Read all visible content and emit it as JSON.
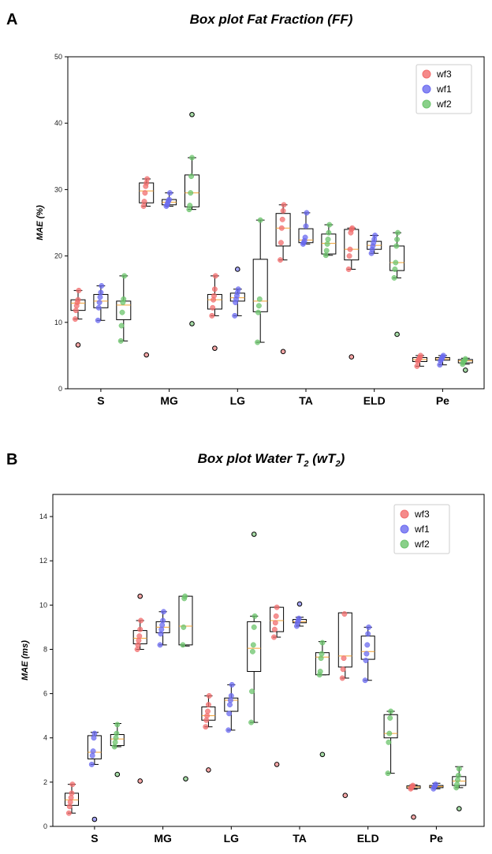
{
  "chart_data": [
    {
      "type": "box",
      "panel": "A",
      "title": "Box plot Fat Fraction (FF)",
      "ylabel": "MAE (%)",
      "xlabel": "",
      "ylim": [
        0,
        50
      ],
      "yticks": [
        0,
        10,
        20,
        30,
        40,
        50
      ],
      "grid": false,
      "legend_position": "top-right",
      "categories": [
        "S",
        "MG",
        "LG",
        "TA",
        "ELD",
        "Pe"
      ],
      "series": [
        {
          "name": "wf3",
          "color": "#f26d6d",
          "boxes": [
            {
              "q1": 11.8,
              "median": 12.9,
              "q3": 13.4,
              "whislo": 10.5,
              "whishi": 14.8,
              "points": [
                10.5,
                11.8,
                12.5,
                13.0,
                13.4,
                14.8
              ],
              "outliers": [
                6.6
              ]
            },
            {
              "q1": 28.0,
              "median": 29.8,
              "q3": 31.0,
              "whislo": 27.5,
              "whishi": 31.6,
              "points": [
                27.5,
                28.2,
                29.5,
                30.5,
                31.0,
                31.6
              ],
              "outliers": [
                5.1
              ]
            },
            {
              "q1": 12.0,
              "median": 13.4,
              "q3": 14.2,
              "whislo": 11.0,
              "whishi": 17.0,
              "points": [
                11.0,
                12.2,
                13.4,
                14.0,
                15.0,
                17.0
              ],
              "outliers": [
                6.1
              ]
            },
            {
              "q1": 21.5,
              "median": 24.2,
              "q3": 26.4,
              "whislo": 19.4,
              "whishi": 27.7,
              "points": [
                19.4,
                22.0,
                24.2,
                25.5,
                26.8,
                27.7
              ],
              "outliers": [
                5.6
              ]
            },
            {
              "q1": 19.4,
              "median": 21.0,
              "q3": 24.0,
              "whislo": 18.0,
              "whishi": 24.2,
              "points": [
                18.0,
                20.0,
                21.0,
                23.5,
                24.0,
                24.2
              ],
              "outliers": [
                4.8
              ]
            },
            {
              "q1": 4.1,
              "median": 4.4,
              "q3": 4.7,
              "whislo": 3.4,
              "whishi": 5.0,
              "points": [
                3.4,
                4.1,
                4.3,
                4.5,
                4.7,
                5.0
              ],
              "outliers": []
            }
          ]
        },
        {
          "name": "wf1",
          "color": "#6b6bf0",
          "boxes": [
            {
              "q1": 12.2,
              "median": 13.2,
              "q3": 14.2,
              "whislo": 10.3,
              "whishi": 15.5,
              "points": [
                10.3,
                12.2,
                13.0,
                13.8,
                14.5,
                15.5
              ],
              "outliers": []
            },
            {
              "q1": 27.7,
              "median": 28.1,
              "q3": 28.5,
              "whislo": 27.5,
              "whishi": 29.5,
              "points": [
                27.5,
                27.7,
                28.0,
                28.3,
                28.5,
                29.5
              ],
              "outliers": []
            },
            {
              "q1": 13.2,
              "median": 13.7,
              "q3": 14.4,
              "whislo": 11.0,
              "whishi": 15.0,
              "points": [
                11.0,
                13.0,
                13.5,
                14.0,
                14.5,
                15.0
              ],
              "outliers": [
                18.0
              ]
            },
            {
              "q1": 22.0,
              "median": 22.4,
              "q3": 24.1,
              "whislo": 21.8,
              "whishi": 26.5,
              "points": [
                21.8,
                22.0,
                22.3,
                22.8,
                24.5,
                26.5
              ],
              "outliers": []
            },
            {
              "q1": 21.0,
              "median": 21.6,
              "q3": 22.2,
              "whislo": 20.4,
              "whishi": 23.1,
              "points": [
                20.4,
                21.0,
                21.5,
                22.0,
                22.5,
                23.1
              ],
              "outliers": []
            },
            {
              "q1": 4.3,
              "median": 4.5,
              "q3": 4.7,
              "whislo": 3.6,
              "whishi": 5.0,
              "points": [
                3.6,
                4.2,
                4.4,
                4.6,
                4.8,
                5.0
              ],
              "outliers": []
            }
          ]
        },
        {
          "name": "wf2",
          "color": "#6cc46c",
          "boxes": [
            {
              "q1": 10.4,
              "median": 12.6,
              "q3": 13.2,
              "whislo": 7.2,
              "whishi": 17.0,
              "points": [
                7.2,
                9.5,
                11.5,
                13.0,
                13.5,
                17.0
              ],
              "outliers": []
            },
            {
              "q1": 27.4,
              "median": 29.5,
              "q3": 32.2,
              "whislo": 27.0,
              "whishi": 34.8,
              "points": [
                27.0,
                27.6,
                29.5,
                32.0,
                34.8
              ],
              "outliers": [
                9.8,
                41.3
              ]
            },
            {
              "q1": 11.6,
              "median": 13.2,
              "q3": 19.5,
              "whislo": 7.0,
              "whishi": 25.4,
              "points": [
                7.0,
                11.5,
                12.5,
                13.5,
                25.4
              ],
              "outliers": []
            },
            {
              "q1": 20.3,
              "median": 21.9,
              "q3": 23.3,
              "whislo": 20.1,
              "whishi": 24.7,
              "points": [
                20.1,
                20.8,
                21.8,
                22.5,
                23.5,
                24.7
              ],
              "outliers": []
            },
            {
              "q1": 17.8,
              "median": 19.0,
              "q3": 21.5,
              "whislo": 16.7,
              "whishi": 23.5,
              "points": [
                16.7,
                18.0,
                19.0,
                21.5,
                22.5,
                23.5
              ],
              "outliers": [
                8.2
              ]
            },
            {
              "q1": 3.9,
              "median": 4.2,
              "q3": 4.4,
              "whislo": 3.7,
              "whishi": 4.6,
              "points": [
                3.7,
                4.0,
                4.2,
                4.3,
                4.5
              ],
              "outliers": [
                2.8
              ]
            }
          ]
        }
      ]
    },
    {
      "type": "box",
      "panel": "B",
      "title": "Box plot Water T2 (wT2)",
      "title_main": "Box plot Water T",
      "title_sub": "2",
      "title_paren": "wT",
      "ylabel": "MAE (ms)",
      "xlabel": "",
      "ylim": [
        0,
        15
      ],
      "yticks": [
        0,
        2,
        4,
        6,
        8,
        10,
        12,
        14
      ],
      "grid": false,
      "legend_position": "top-right",
      "categories": [
        "S",
        "MG",
        "LG",
        "TA",
        "ELD",
        "Pe"
      ],
      "series": [
        {
          "name": "wf3",
          "color": "#f26d6d",
          "boxes": [
            {
              "q1": 0.95,
              "median": 1.2,
              "q3": 1.5,
              "whislo": 0.6,
              "whishi": 1.9,
              "points": [
                0.6,
                0.9,
                1.1,
                1.3,
                1.5,
                1.9
              ],
              "outliers": []
            },
            {
              "q1": 8.25,
              "median": 8.5,
              "q3": 8.85,
              "whislo": 8.0,
              "whishi": 9.3,
              "points": [
                8.0,
                8.2,
                8.4,
                8.6,
                8.9,
                9.3
              ],
              "outliers": [
                2.05,
                10.4
              ]
            },
            {
              "q1": 4.8,
              "median": 5.0,
              "q3": 5.4,
              "whislo": 4.5,
              "whishi": 5.9,
              "points": [
                4.5,
                4.8,
                5.0,
                5.2,
                5.5,
                5.9
              ],
              "outliers": [
                2.55
              ]
            },
            {
              "q1": 8.8,
              "median": 9.3,
              "q3": 9.9,
              "whislo": 8.55,
              "whishi": 9.9,
              "points": [
                8.55,
                8.9,
                9.2,
                9.5,
                9.9
              ],
              "outliers": [
                2.8
              ]
            },
            {
              "q1": 7.2,
              "median": 7.7,
              "q3": 9.65,
              "whislo": 6.7,
              "whishi": 9.65,
              "points": [
                6.7,
                7.1,
                7.6,
                9.6
              ],
              "outliers": [
                1.4
              ]
            },
            {
              "q1": 1.72,
              "median": 1.78,
              "q3": 1.83,
              "whislo": 1.68,
              "whishi": 1.88,
              "points": [
                1.7,
                1.75,
                1.8,
                1.85
              ],
              "outliers": [
                0.42
              ]
            }
          ]
        },
        {
          "name": "wf1",
          "color": "#6b6bf0",
          "boxes": [
            {
              "q1": 3.05,
              "median": 3.35,
              "q3": 4.1,
              "whislo": 2.8,
              "whishi": 4.25,
              "points": [
                2.8,
                3.2,
                3.4,
                4.0,
                4.2
              ],
              "outliers": [
                0.32
              ]
            },
            {
              "q1": 8.75,
              "median": 9.0,
              "q3": 9.25,
              "whislo": 8.2,
              "whishi": 9.7,
              "points": [
                8.2,
                8.7,
                8.9,
                9.1,
                9.3,
                9.7
              ],
              "outliers": []
            },
            {
              "q1": 5.2,
              "median": 5.7,
              "q3": 5.8,
              "whislo": 4.35,
              "whishi": 6.4,
              "points": [
                4.35,
                5.1,
                5.5,
                5.7,
                5.9,
                6.4
              ],
              "outliers": []
            },
            {
              "q1": 9.2,
              "median": 9.25,
              "q3": 9.35,
              "whislo": 9.05,
              "whishi": 9.45,
              "points": [
                9.05,
                9.2,
                9.3,
                9.4
              ],
              "outliers": [
                10.05
              ]
            },
            {
              "q1": 7.55,
              "median": 7.9,
              "q3": 8.6,
              "whislo": 6.6,
              "whishi": 9.0,
              "points": [
                6.6,
                7.5,
                7.8,
                8.2,
                8.7,
                9.0
              ],
              "outliers": []
            },
            {
              "q1": 1.75,
              "median": 1.8,
              "q3": 1.85,
              "whislo": 1.7,
              "whishi": 1.95,
              "points": [
                1.7,
                1.78,
                1.83,
                1.9
              ],
              "outliers": []
            }
          ]
        },
        {
          "name": "wf2",
          "color": "#6cc46c",
          "boxes": [
            {
              "q1": 3.65,
              "median": 3.95,
              "q3": 4.15,
              "whislo": 3.6,
              "whishi": 4.65,
              "points": [
                3.6,
                3.8,
                4.0,
                4.2,
                4.6
              ],
              "outliers": [
                2.35
              ]
            },
            {
              "q1": 8.2,
              "median": 9.05,
              "q3": 10.4,
              "whislo": 8.15,
              "whishi": 10.4,
              "points": [
                8.2,
                9.0,
                10.3,
                10.4
              ],
              "outliers": [
                2.15
              ]
            },
            {
              "q1": 7.0,
              "median": 8.05,
              "q3": 9.25,
              "whislo": 4.7,
              "whishi": 9.5,
              "points": [
                4.7,
                6.1,
                7.9,
                8.2,
                9.0,
                9.5
              ],
              "outliers": [
                13.2
              ]
            },
            {
              "q1": 6.85,
              "median": 7.65,
              "q3": 7.85,
              "whislo": 6.85,
              "whishi": 8.35,
              "points": [
                6.85,
                7.0,
                7.6,
                7.8,
                8.3
              ],
              "outliers": [
                3.25
              ]
            },
            {
              "q1": 4.0,
              "median": 4.2,
              "q3": 5.05,
              "whislo": 2.4,
              "whishi": 5.2,
              "points": [
                2.4,
                3.8,
                4.2,
                4.9,
                5.2
              ],
              "outliers": []
            },
            {
              "q1": 1.85,
              "median": 2.05,
              "q3": 2.25,
              "whislo": 1.75,
              "whishi": 2.7,
              "points": [
                1.75,
                1.9,
                2.1,
                2.3,
                2.6
              ],
              "outliers": [
                0.8
              ]
            }
          ]
        }
      ]
    }
  ],
  "panels": {
    "a_letter": "A",
    "a_title": "Box plot Fat Fraction (FF)",
    "b_letter": "B",
    "b_title_main": "Box plot Water T",
    "b_title_sub1": "2",
    "b_title_mid": " (",
    "b_title_wt": "wT",
    "b_title_sub2": "2",
    "b_title_end": ")"
  }
}
